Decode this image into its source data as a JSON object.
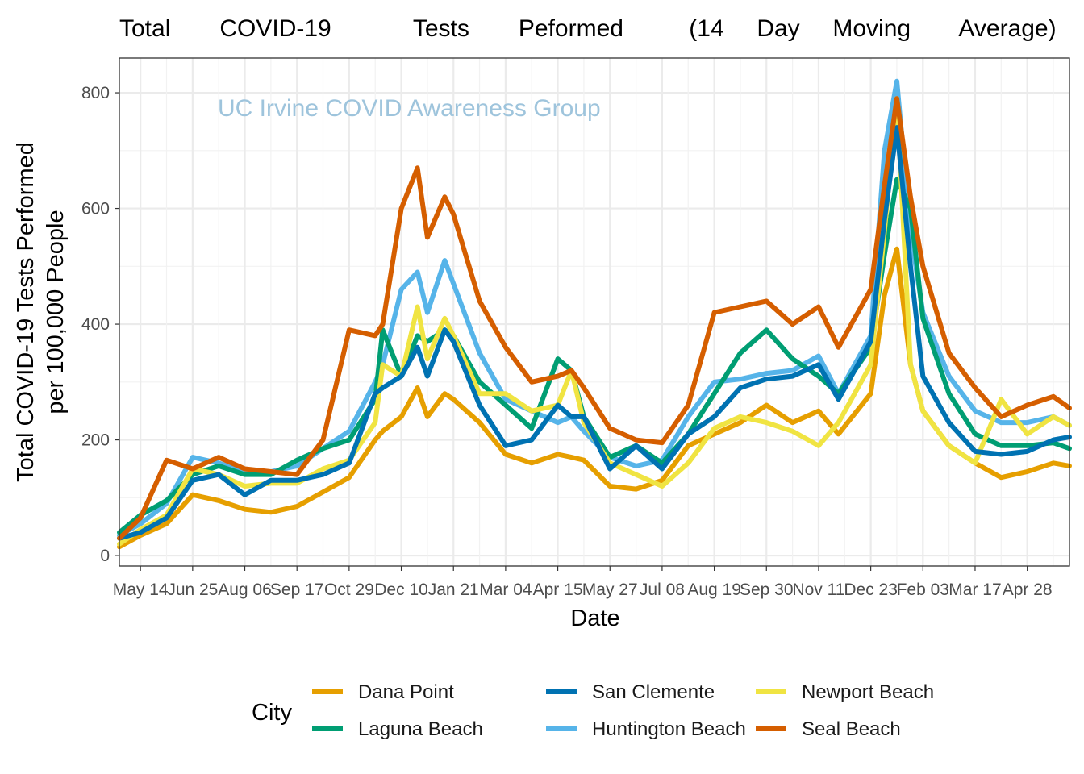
{
  "chart_data": {
    "type": "line",
    "title": "Total   COVID-19     Tests   Peformed    (14  Day  Moving   Average)",
    "xlabel": "Date",
    "ylabel": [
      "Total COVID-19 Tests Performed",
      "per 100,000 People"
    ],
    "watermark": "UC Irvine COVID Awareness Group",
    "watermark_color": "#9EC4DC",
    "ylim": [
      -18,
      860
    ],
    "yticks": [
      0,
      200,
      400,
      600,
      800
    ],
    "xlim": [
      "2020-04-27",
      "2022-06-01"
    ],
    "xticks": [
      {
        "date": "2020-05-14",
        "label": "May 14"
      },
      {
        "date": "2020-06-25",
        "label": "Jun 25"
      },
      {
        "date": "2020-08-06",
        "label": "Aug 06"
      },
      {
        "date": "2020-09-17",
        "label": "Sep 17"
      },
      {
        "date": "2020-10-29",
        "label": "Oct 29"
      },
      {
        "date": "2020-12-10",
        "label": "Dec 10"
      },
      {
        "date": "2021-01-21",
        "label": "Jan 21"
      },
      {
        "date": "2021-03-04",
        "label": "Mar 04"
      },
      {
        "date": "2021-04-15",
        "label": "Apr 15"
      },
      {
        "date": "2021-05-27",
        "label": "May 27"
      },
      {
        "date": "2021-07-08",
        "label": "Jul 08"
      },
      {
        "date": "2021-08-19",
        "label": "Aug 19"
      },
      {
        "date": "2021-09-30",
        "label": "Sep 30"
      },
      {
        "date": "2021-11-11",
        "label": "Nov 11"
      },
      {
        "date": "2021-12-23",
        "label": "Dec 23"
      },
      {
        "date": "2022-02-03",
        "label": "Feb 03"
      },
      {
        "date": "2022-03-17",
        "label": "Mar 17"
      },
      {
        "date": "2022-04-28",
        "label": "Apr 28"
      }
    ],
    "grid": true,
    "legend": {
      "title": "City",
      "position": "bottom"
    },
    "x": [
      "2020-04-27",
      "2020-05-14",
      "2020-06-04",
      "2020-06-25",
      "2020-07-16",
      "2020-08-06",
      "2020-08-27",
      "2020-09-17",
      "2020-10-08",
      "2020-10-29",
      "2020-11-19",
      "2020-11-25",
      "2020-12-10",
      "2020-12-23",
      "2020-12-31",
      "2021-01-14",
      "2021-01-21",
      "2021-02-11",
      "2021-03-04",
      "2021-03-25",
      "2021-04-15",
      "2021-04-26",
      "2021-05-06",
      "2021-05-27",
      "2021-06-17",
      "2021-07-08",
      "2021-07-29",
      "2021-08-19",
      "2021-09-09",
      "2021-09-30",
      "2021-10-21",
      "2021-11-11",
      "2021-11-27",
      "2021-12-23",
      "2022-01-03",
      "2022-01-13",
      "2022-01-24",
      "2022-02-03",
      "2022-02-24",
      "2022-03-17",
      "2022-04-07",
      "2022-04-28",
      "2022-05-19",
      "2022-06-01"
    ],
    "series": [
      {
        "name": "Dana Point",
        "color": "#E69F00",
        "values": [
          15,
          35,
          55,
          105,
          95,
          80,
          75,
          85,
          110,
          135,
          200,
          215,
          240,
          290,
          240,
          280,
          270,
          230,
          175,
          160,
          175,
          170,
          165,
          120,
          115,
          130,
          190,
          210,
          230,
          260,
          230,
          250,
          210,
          280,
          450,
          530,
          330,
          250,
          190,
          160,
          135,
          145,
          160,
          155
        ]
      },
      {
        "name": "Huntington Beach",
        "color": "#56B4E9",
        "values": [
          35,
          55,
          90,
          170,
          160,
          145,
          145,
          155,
          185,
          215,
          300,
          330,
          460,
          490,
          420,
          510,
          470,
          350,
          270,
          250,
          230,
          240,
          215,
          170,
          155,
          165,
          240,
          300,
          305,
          315,
          320,
          345,
          280,
          380,
          700,
          820,
          560,
          420,
          310,
          250,
          230,
          230,
          240,
          225
        ]
      },
      {
        "name": "Laguna Beach",
        "color": "#009E73",
        "values": [
          40,
          70,
          95,
          140,
          155,
          140,
          140,
          165,
          185,
          200,
          270,
          390,
          310,
          380,
          370,
          390,
          380,
          300,
          260,
          220,
          340,
          320,
          240,
          170,
          190,
          160,
          210,
          280,
          350,
          390,
          340,
          310,
          280,
          360,
          520,
          650,
          600,
          410,
          280,
          210,
          190,
          190,
          195,
          185
        ]
      },
      {
        "name": "Newport Beach",
        "color": "#F0E442",
        "values": [
          20,
          45,
          70,
          150,
          140,
          120,
          125,
          125,
          150,
          165,
          230,
          330,
          310,
          430,
          340,
          410,
          380,
          280,
          280,
          250,
          260,
          320,
          230,
          160,
          140,
          120,
          160,
          220,
          240,
          230,
          215,
          190,
          230,
          330,
          560,
          790,
          330,
          250,
          190,
          160,
          270,
          210,
          240,
          225
        ]
      },
      {
        "name": "San Clemente",
        "color": "#0072B2",
        "values": [
          30,
          40,
          65,
          130,
          140,
          105,
          130,
          130,
          140,
          160,
          280,
          290,
          310,
          360,
          310,
          390,
          370,
          260,
          190,
          200,
          260,
          240,
          240,
          150,
          190,
          150,
          210,
          240,
          290,
          305,
          310,
          330,
          270,
          370,
          580,
          740,
          500,
          310,
          230,
          180,
          175,
          180,
          200,
          205
        ]
      },
      {
        "name": "Seal Beach",
        "color": "#D55E00",
        "values": [
          30,
          65,
          165,
          150,
          170,
          150,
          145,
          140,
          200,
          390,
          380,
          400,
          600,
          670,
          550,
          620,
          590,
          440,
          360,
          300,
          310,
          320,
          290,
          220,
          200,
          195,
          260,
          420,
          430,
          440,
          400,
          430,
          360,
          460,
          640,
          790,
          620,
          500,
          350,
          290,
          240,
          260,
          275,
          255
        ]
      }
    ],
    "legend_order": [
      0,
      2,
      4,
      1,
      3,
      5
    ]
  }
}
